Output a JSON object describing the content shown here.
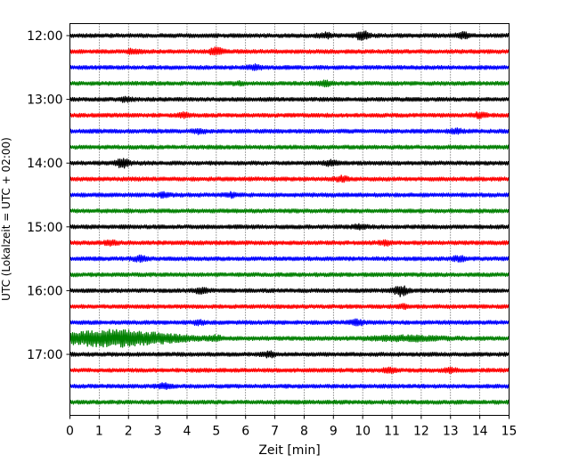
{
  "chart_data": {
    "type": "line",
    "title": "",
    "xlabel": "Zeit  [min]",
    "ylabel": "UTC (Lokalzeit = UTC + 02:00)",
    "xlim": [
      0,
      15
    ],
    "x_ticks": [
      "0",
      "1",
      "2",
      "3",
      "4",
      "5",
      "6",
      "7",
      "8",
      "9",
      "10",
      "11",
      "12",
      "13",
      "14",
      "15"
    ],
    "row_interval_min": 15,
    "start_time": "12:00",
    "y_ticks": [
      "12:00",
      "13:00",
      "14:00",
      "15:00",
      "16:00",
      "17:00"
    ],
    "grid": "x-dotted",
    "colors": [
      "#000000",
      "#ff0000",
      "#0000ff",
      "#008000"
    ],
    "rows": [
      {
        "time": "12:00",
        "color": "#000000",
        "events": [
          {
            "t": 8.7,
            "amp": 2.2
          },
          {
            "t": 10.0,
            "amp": 4.5
          },
          {
            "t": 13.4,
            "amp": 2.8
          }
        ]
      },
      {
        "time": "12:15",
        "color": "#ff0000",
        "events": [
          {
            "t": 2.2,
            "amp": 2.0
          },
          {
            "t": 5.0,
            "amp": 3.2
          }
        ]
      },
      {
        "time": "12:30",
        "color": "#0000ff",
        "events": [
          {
            "t": 6.3,
            "amp": 2.0
          }
        ]
      },
      {
        "time": "12:45",
        "color": "#008000",
        "events": [
          {
            "t": 5.8,
            "amp": 1.2
          },
          {
            "t": 8.7,
            "amp": 2.0
          }
        ]
      },
      {
        "time": "13:00",
        "color": "#000000",
        "events": [
          {
            "t": 1.9,
            "amp": 1.5
          }
        ]
      },
      {
        "time": "13:15",
        "color": "#ff0000",
        "events": [
          {
            "t": 3.9,
            "amp": 2.2
          },
          {
            "t": 14.0,
            "amp": 2.2
          }
        ]
      },
      {
        "time": "13:30",
        "color": "#0000ff",
        "events": [
          {
            "t": 4.4,
            "amp": 1.8
          },
          {
            "t": 13.2,
            "amp": 1.6
          }
        ]
      },
      {
        "time": "13:45",
        "color": "#008000",
        "events": []
      },
      {
        "time": "14:00",
        "color": "#000000",
        "events": [
          {
            "t": 1.8,
            "amp": 4.0
          },
          {
            "t": 8.9,
            "amp": 2.0
          }
        ]
      },
      {
        "time": "14:15",
        "color": "#ff0000",
        "events": [
          {
            "t": 9.3,
            "amp": 2.2
          }
        ]
      },
      {
        "time": "14:30",
        "color": "#0000ff",
        "events": [
          {
            "t": 3.2,
            "amp": 1.6
          },
          {
            "t": 5.5,
            "amp": 1.6
          }
        ]
      },
      {
        "time": "14:45",
        "color": "#008000",
        "events": []
      },
      {
        "time": "15:00",
        "color": "#000000",
        "events": [
          {
            "t": 9.9,
            "amp": 1.6
          }
        ]
      },
      {
        "time": "15:15",
        "color": "#ff0000",
        "events": [
          {
            "t": 1.4,
            "amp": 1.8
          },
          {
            "t": 10.8,
            "amp": 1.8
          }
        ]
      },
      {
        "time": "15:30",
        "color": "#0000ff",
        "events": [
          {
            "t": 2.4,
            "amp": 2.2
          },
          {
            "t": 13.3,
            "amp": 2.0
          }
        ]
      },
      {
        "time": "15:45",
        "color": "#008000",
        "events": []
      },
      {
        "time": "16:00",
        "color": "#000000",
        "events": [
          {
            "t": 4.5,
            "amp": 2.2
          },
          {
            "t": 11.3,
            "amp": 4.8
          }
        ]
      },
      {
        "time": "16:15",
        "color": "#ff0000",
        "events": [
          {
            "t": 11.4,
            "amp": 1.2
          }
        ]
      },
      {
        "time": "16:30",
        "color": "#0000ff",
        "events": [
          {
            "t": 4.4,
            "amp": 1.6
          },
          {
            "t": 9.8,
            "amp": 2.2
          }
        ]
      },
      {
        "time": "16:45",
        "color": "#008000",
        "events": [
          {
            "t": 1.2,
            "amp": 7.5,
            "width": 1.6
          },
          {
            "t": 3.0,
            "amp": 2.5,
            "width": 1.4
          },
          {
            "t": 5.0,
            "amp": 1.8
          },
          {
            "t": 11.5,
            "amp": 2.0,
            "width": 1.2
          }
        ]
      },
      {
        "time": "17:00",
        "color": "#000000",
        "events": [
          {
            "t": 6.8,
            "amp": 2.0
          }
        ]
      },
      {
        "time": "17:15",
        "color": "#ff0000",
        "events": [
          {
            "t": 10.9,
            "amp": 1.6
          },
          {
            "t": 13.0,
            "amp": 1.4
          }
        ]
      },
      {
        "time": "17:30",
        "color": "#0000ff",
        "events": [
          {
            "t": 3.2,
            "amp": 2.2
          }
        ]
      },
      {
        "time": "17:45",
        "color": "#008000",
        "events": []
      }
    ]
  }
}
